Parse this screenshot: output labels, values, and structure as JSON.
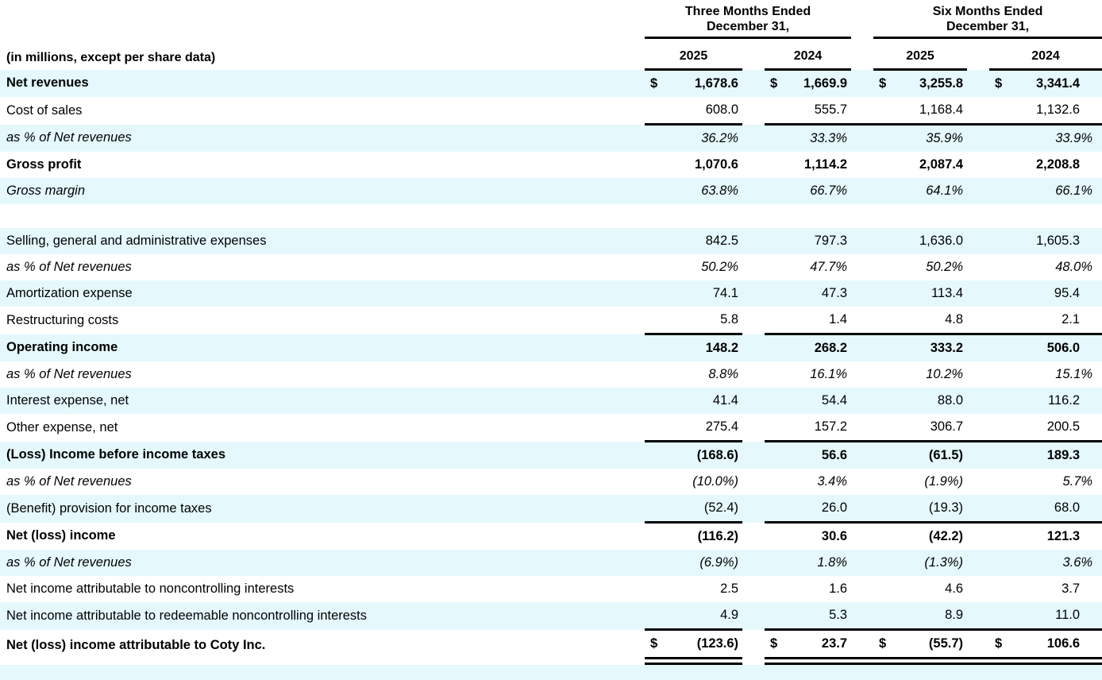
{
  "colors": {
    "row_highlight": "#e5f9fd",
    "text": "#000000",
    "rule": "#000000"
  },
  "table": {
    "note": "(in millions, except per share data)",
    "currency_symbol": "$",
    "periods": [
      {
        "line1": "Three Months Ended",
        "line2": "December 31,"
      },
      {
        "line1": "Six Months Ended",
        "line2": "December 31,"
      }
    ],
    "years": [
      "2025",
      "2024",
      "2025",
      "2024"
    ],
    "rows": [
      {
        "label": "Net revenues",
        "emphasis": "bold",
        "bg": "blue",
        "dollar": true,
        "values": [
          "1,678.6",
          "1,669.9",
          "3,255.8",
          "3,341.4"
        ]
      },
      {
        "label": "Cost of sales",
        "emphasis": "normal",
        "bg": "white",
        "rule": "bottom",
        "values": [
          "608.0",
          "555.7",
          "1,168.4",
          "1,132.6"
        ]
      },
      {
        "label": "as % of Net revenues",
        "emphasis": "italic",
        "bg": "blue",
        "percent": true,
        "values": [
          "36.2%",
          "33.3%",
          "35.9%",
          "33.9%"
        ]
      },
      {
        "label": "Gross profit",
        "emphasis": "bold",
        "bg": "white",
        "values": [
          "1,070.6",
          "1,114.2",
          "2,087.4",
          "2,208.8"
        ]
      },
      {
        "label": "Gross margin",
        "emphasis": "italic",
        "bg": "blue",
        "percent": true,
        "values": [
          "63.8%",
          "66.7%",
          "64.1%",
          "66.1%"
        ]
      },
      {
        "type": "spacer",
        "bg": "white"
      },
      {
        "label": "Selling, general and administrative expenses",
        "emphasis": "normal",
        "bg": "blue",
        "values": [
          "842.5",
          "797.3",
          "1,636.0",
          "1,605.3"
        ]
      },
      {
        "label": "as % of Net revenues",
        "emphasis": "italic",
        "bg": "white",
        "percent": true,
        "values": [
          "50.2%",
          "47.7%",
          "50.2%",
          "48.0%"
        ]
      },
      {
        "label": "Amortization expense",
        "emphasis": "normal",
        "bg": "blue",
        "values": [
          "74.1",
          "47.3",
          "113.4",
          "95.4"
        ]
      },
      {
        "label": "Restructuring costs",
        "emphasis": "normal",
        "bg": "white",
        "rule": "bottom",
        "values": [
          "5.8",
          "1.4",
          "4.8",
          "2.1"
        ]
      },
      {
        "label": "Operating income",
        "emphasis": "bold",
        "bg": "blue",
        "values": [
          "148.2",
          "268.2",
          "333.2",
          "506.0"
        ]
      },
      {
        "label": "as % of Net revenues",
        "emphasis": "italic",
        "bg": "white",
        "percent": true,
        "values": [
          "8.8%",
          "16.1%",
          "10.2%",
          "15.1%"
        ]
      },
      {
        "label": "Interest expense, net",
        "emphasis": "normal",
        "bg": "blue",
        "values": [
          "41.4",
          "54.4",
          "88.0",
          "116.2"
        ]
      },
      {
        "label": "Other expense, net",
        "emphasis": "normal",
        "bg": "white",
        "rule": "bottom",
        "values": [
          "275.4",
          "157.2",
          "306.7",
          "200.5"
        ]
      },
      {
        "label": "(Loss) Income before income taxes",
        "emphasis": "bold",
        "bg": "blue",
        "values": [
          "(168.6)",
          "56.6",
          "(61.5)",
          "189.3"
        ]
      },
      {
        "label": "as % of Net revenues",
        "emphasis": "italic",
        "bg": "white",
        "percent": true,
        "values": [
          "(10.0%)",
          "3.4%",
          "(1.9%)",
          "5.7%"
        ]
      },
      {
        "label": "(Benefit) provision for income taxes",
        "emphasis": "normal",
        "bg": "blue",
        "rule": "bottom",
        "values": [
          "(52.4)",
          "26.0",
          "(19.3)",
          "68.0"
        ]
      },
      {
        "label": "Net (loss) income",
        "emphasis": "bold",
        "bg": "white",
        "values": [
          "(116.2)",
          "30.6",
          "(42.2)",
          "121.3"
        ]
      },
      {
        "label": "as % of Net revenues",
        "emphasis": "italic",
        "bg": "blue",
        "percent": true,
        "values": [
          "(6.9%)",
          "1.8%",
          "(1.3%)",
          "3.6%"
        ]
      },
      {
        "label": "Net income attributable to noncontrolling interests",
        "emphasis": "normal",
        "bg": "white",
        "values": [
          "2.5",
          "1.6",
          "4.6",
          "3.7"
        ]
      },
      {
        "label": "Net income attributable to redeemable noncontrolling interests",
        "emphasis": "normal",
        "bg": "blue",
        "values": [
          "4.9",
          "5.3",
          "8.9",
          "11.0"
        ]
      },
      {
        "label": "Net (loss) income attributable to Coty Inc.",
        "emphasis": "bold",
        "bg": "white",
        "dollar": true,
        "rule": "total",
        "values": [
          "(123.6)",
          "23.7",
          "(55.7)",
          "106.6"
        ]
      },
      {
        "type": "spacer",
        "bg": "blue"
      }
    ]
  }
}
